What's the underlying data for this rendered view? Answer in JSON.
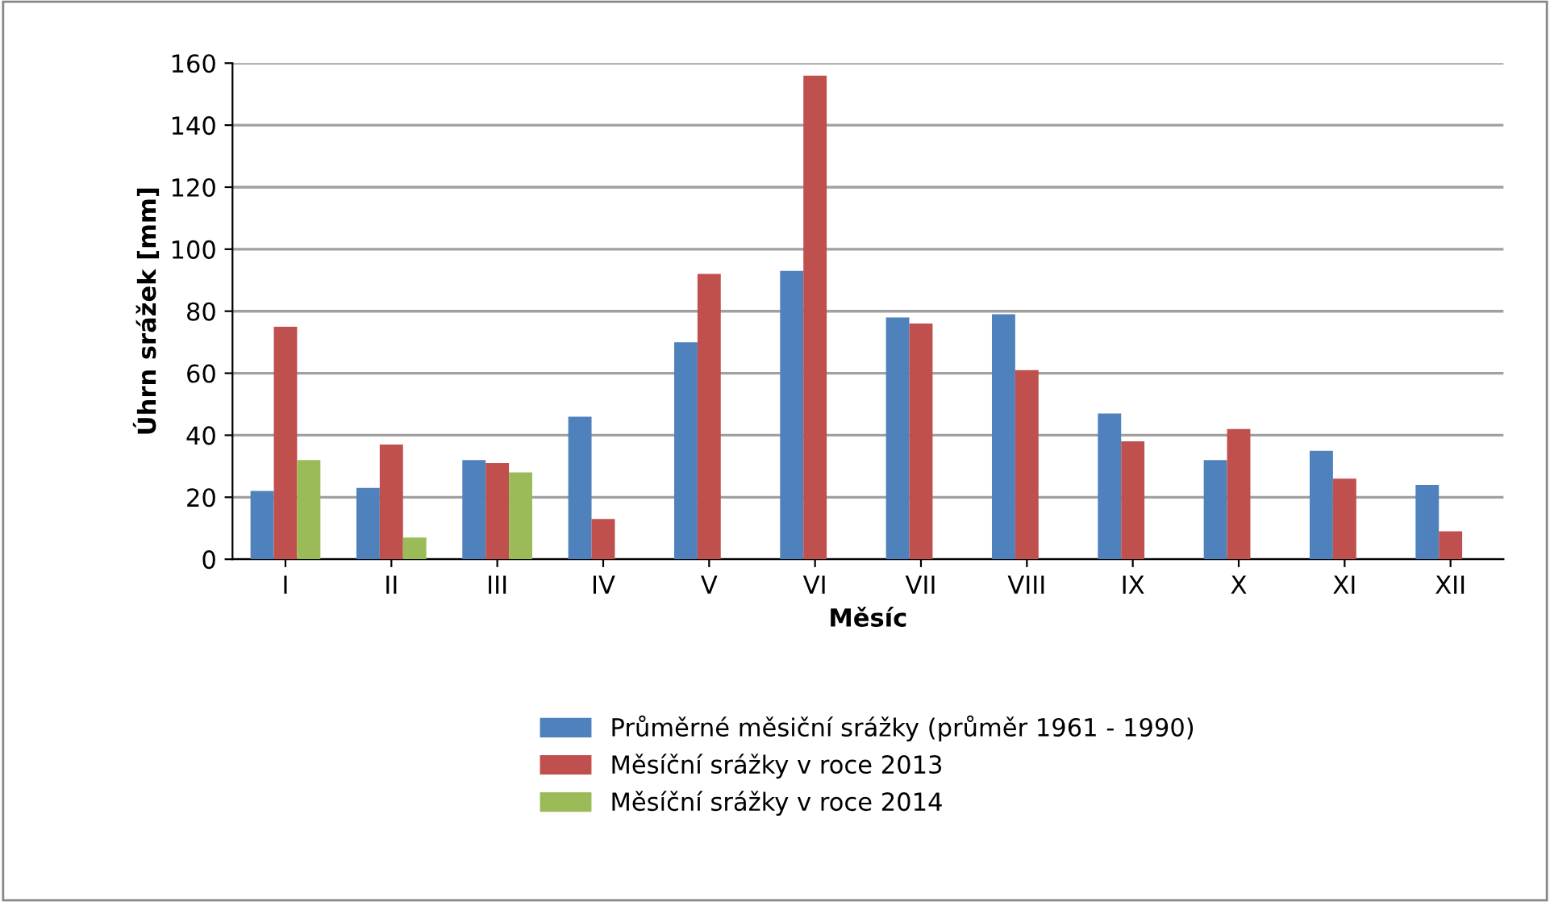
{
  "chart_data": {
    "type": "bar",
    "xlabel": "Měsíc",
    "ylabel": "Úhrn srážek [mm]",
    "categories": [
      "I",
      "II",
      "III",
      "IV",
      "V",
      "VI",
      "VII",
      "VIII",
      "IX",
      "X",
      "XI",
      "XII"
    ],
    "series": [
      {
        "name": "Průměrné měsiční srážky (průměr 1961 - 1990)",
        "color": "#4f81bd",
        "values": [
          22,
          23,
          32,
          46,
          70,
          93,
          78,
          79,
          47,
          32,
          35,
          24
        ]
      },
      {
        "name": "Měsíční srážky v roce 2013",
        "color": "#c0504d",
        "values": [
          75,
          37,
          31,
          13,
          92,
          156,
          76,
          61,
          38,
          42,
          26,
          9
        ]
      },
      {
        "name": "Měsíční srážky v roce 2014",
        "color": "#9bbb59",
        "values": [
          32,
          7,
          28,
          null,
          null,
          null,
          null,
          null,
          null,
          null,
          null,
          null
        ]
      }
    ],
    "ylim": [
      0,
      160
    ],
    "yticks": [
      0,
      20,
      40,
      60,
      80,
      100,
      120,
      140,
      160
    ],
    "grid": "y",
    "legend": "bottom"
  }
}
